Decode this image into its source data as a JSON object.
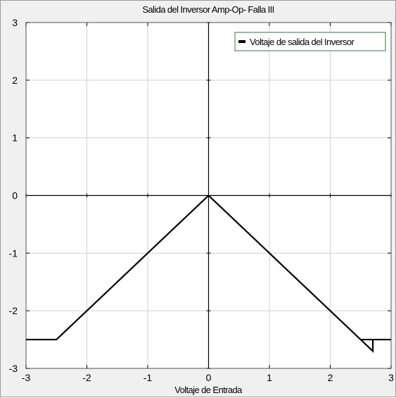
{
  "chart_data": {
    "type": "line",
    "title": "Salida del Inversor Amp-Op- Falla III",
    "xlabel": "Voltaje de Entrada",
    "ylabel": "",
    "xlim": [
      -3,
      3
    ],
    "ylim": [
      -3,
      3
    ],
    "xticks": [
      "-3",
      "-2",
      "-1",
      "0",
      "1",
      "2",
      "3"
    ],
    "yticks": [
      "3",
      "2",
      "1",
      "0",
      "-1",
      "-2",
      "-3"
    ],
    "grid": true,
    "legend": "top-right",
    "reference_lines": [
      "x = 0",
      "y = 0"
    ],
    "series": [
      {
        "name": "Voltaje de salida del Inversor",
        "color": "#000000",
        "x": [
          -3.0,
          -2.5,
          0.0,
          2.55,
          2.7,
          2.7,
          2.55,
          2.5,
          3.0
        ],
        "y": [
          -2.5,
          -2.5,
          0.0,
          -2.55,
          -2.7,
          -2.5,
          -2.5,
          -2.5,
          -2.5
        ]
      }
    ]
  }
}
